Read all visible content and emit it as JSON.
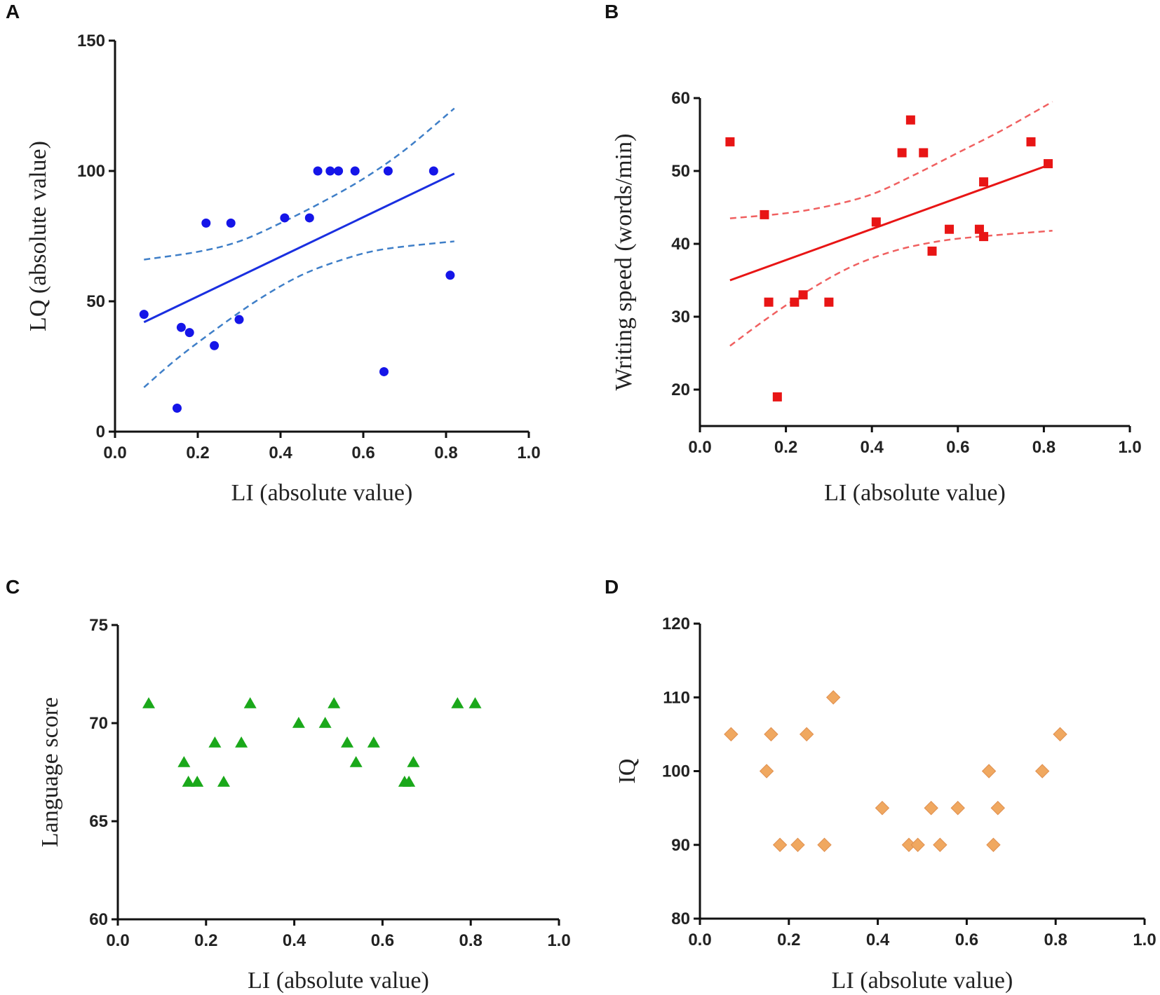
{
  "chart_data": [
    {
      "panel": "A",
      "type": "scatter",
      "marker": "circle",
      "color": "#1515e8",
      "fit_color": "#1a2fe0",
      "ci_color": "#3f7fc8",
      "xlabel": "LI (absolute value)",
      "ylabel": "LQ (absolute value)",
      "xlim": [
        0,
        1.0
      ],
      "ylim": [
        0,
        150
      ],
      "xticks": [
        "0.0",
        "0.2",
        "0.4",
        "0.6",
        "0.8",
        "1.0"
      ],
      "yticks": [
        "0",
        "50",
        "100",
        "150"
      ],
      "x": [
        0.07,
        0.15,
        0.16,
        0.18,
        0.22,
        0.24,
        0.28,
        0.3,
        0.41,
        0.47,
        0.49,
        0.52,
        0.54,
        0.58,
        0.65,
        0.66,
        0.77,
        0.81
      ],
      "y": [
        45,
        9,
        40,
        38,
        80,
        33,
        80,
        43,
        82,
        82,
        100,
        100,
        100,
        100,
        23,
        100,
        100,
        60
      ],
      "fit": {
        "x": [
          0.07,
          0.82
        ],
        "y": [
          42,
          99
        ]
      },
      "ci_upper": {
        "x": [
          0.07,
          0.2,
          0.3,
          0.4,
          0.5,
          0.6,
          0.7,
          0.82
        ],
        "y": [
          66,
          69,
          73,
          80,
          88,
          97,
          108,
          124
        ]
      },
      "ci_lower": {
        "x": [
          0.07,
          0.15,
          0.25,
          0.35,
          0.45,
          0.55,
          0.65,
          0.82
        ],
        "y": [
          17,
          28,
          40,
          51,
          60,
          66,
          70,
          73
        ]
      }
    },
    {
      "panel": "B",
      "type": "scatter",
      "marker": "square",
      "color": "#e81515",
      "fit_color": "#e81515",
      "ci_color": "#f06060",
      "xlabel": "LI (absolute value)",
      "ylabel": "Writing speed (words/min)",
      "xlim": [
        0,
        1.0
      ],
      "ylim": [
        15,
        60
      ],
      "xticks": [
        "0.0",
        "0.2",
        "0.4",
        "0.6",
        "0.8",
        "1.0"
      ],
      "yticks": [
        "20",
        "30",
        "40",
        "50",
        "60"
      ],
      "x": [
        0.07,
        0.15,
        0.16,
        0.18,
        0.22,
        0.24,
        0.3,
        0.41,
        0.47,
        0.49,
        0.52,
        0.54,
        0.58,
        0.65,
        0.66,
        0.66,
        0.77,
        0.81
      ],
      "y": [
        54,
        44,
        32,
        19,
        32,
        33,
        32,
        43,
        52.5,
        57,
        52.5,
        39,
        42,
        42,
        41,
        48.5,
        54,
        51
      ],
      "fit": {
        "x": [
          0.07,
          0.82
        ],
        "y": [
          35,
          51
        ]
      },
      "ci_upper": {
        "x": [
          0.07,
          0.2,
          0.3,
          0.4,
          0.5,
          0.6,
          0.7,
          0.82
        ],
        "y": [
          43.5,
          44.2,
          45.2,
          46.8,
          49.5,
          52.5,
          55.5,
          59.5
        ]
      },
      "ci_lower": {
        "x": [
          0.07,
          0.15,
          0.25,
          0.35,
          0.45,
          0.55,
          0.65,
          0.82
        ],
        "y": [
          26,
          29.5,
          33.5,
          36.8,
          39,
          40.3,
          41,
          41.8
        ]
      }
    },
    {
      "panel": "C",
      "type": "scatter",
      "marker": "triangle",
      "color": "#1aa81a",
      "xlabel": "LI (absolute value)",
      "ylabel": "Language score",
      "xlim": [
        0,
        1.0
      ],
      "ylim": [
        60,
        75
      ],
      "xticks": [
        "0.0",
        "0.2",
        "0.4",
        "0.6",
        "0.8",
        "1.0"
      ],
      "yticks": [
        "60",
        "65",
        "70",
        "75"
      ],
      "x": [
        0.07,
        0.15,
        0.16,
        0.18,
        0.22,
        0.24,
        0.28,
        0.3,
        0.41,
        0.47,
        0.49,
        0.52,
        0.54,
        0.58,
        0.65,
        0.66,
        0.67,
        0.77,
        0.81
      ],
      "y": [
        71,
        68,
        67,
        67,
        69,
        67,
        69,
        71,
        70,
        70,
        71,
        69,
        68,
        69,
        67,
        67,
        68,
        71,
        71
      ]
    },
    {
      "panel": "D",
      "type": "scatter",
      "marker": "diamond",
      "color": "#f0a860",
      "xlabel": "LI (absolute value)",
      "ylabel": "IQ",
      "xlim": [
        0,
        1.0
      ],
      "ylim": [
        80,
        120
      ],
      "xticks": [
        "0.0",
        "0.2",
        "0.4",
        "0.6",
        "0.8",
        "1.0"
      ],
      "yticks": [
        "80",
        "90",
        "100",
        "110",
        "120"
      ],
      "x": [
        0.07,
        0.15,
        0.16,
        0.18,
        0.22,
        0.24,
        0.28,
        0.3,
        0.41,
        0.47,
        0.49,
        0.52,
        0.54,
        0.58,
        0.65,
        0.66,
        0.67,
        0.77,
        0.81
      ],
      "y": [
        105,
        100,
        105,
        90,
        90,
        105,
        90,
        110,
        95,
        90,
        90,
        95,
        90,
        95,
        100,
        90,
        95,
        100,
        105
      ]
    }
  ]
}
